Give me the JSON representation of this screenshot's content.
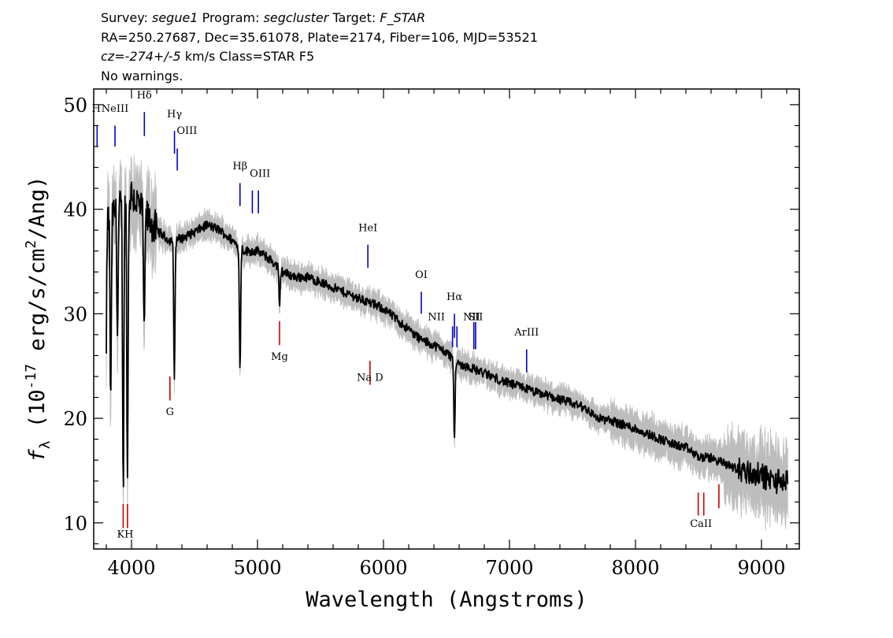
{
  "header": {
    "survey_label": "Survey:",
    "survey": "segue1",
    "program_label": "Program:",
    "program": "segcluster",
    "target_label": "Target:",
    "target": "F_STAR",
    "line2": "RA=250.27687, Dec=35.61078, Plate=2174, Fiber=106, MJD=53521",
    "cz_label": "cz=",
    "cz": "-274+/-5",
    "cz_rest": " km/s Class=STAR F5",
    "warnings": "No warnings."
  },
  "chart_data": {
    "type": "line",
    "xlabel": "Wavelength (Angstroms)",
    "ylabel_prefix": "f",
    "ylabel_sub": "λ",
    "ylabel_open": " (10",
    "ylabel_exp": "-17",
    "ylabel_mid": " erg/s/cm",
    "ylabel_exp2": "2",
    "ylabel_close": "/Ang)",
    "xlim": [
      3700,
      9300
    ],
    "ylim": [
      7.5,
      51.5
    ],
    "xticks": [
      4000,
      5000,
      6000,
      7000,
      8000,
      9000
    ],
    "yticks": [
      10,
      20,
      30,
      40,
      50
    ],
    "colors": {
      "flux": "#000000",
      "error_band": "#bdbdbd",
      "emission": "#0000cc",
      "absorption": "#cc0000"
    },
    "continuum": [
      [
        3800,
        39
      ],
      [
        3900,
        40
      ],
      [
        4000,
        41.5
      ],
      [
        4100,
        39.5
      ],
      [
        4200,
        38
      ],
      [
        4300,
        37
      ],
      [
        4400,
        37.2
      ],
      [
        4500,
        37.8
      ],
      [
        4600,
        38.5
      ],
      [
        4700,
        38
      ],
      [
        4800,
        37
      ],
      [
        4900,
        36
      ],
      [
        5000,
        36
      ],
      [
        5100,
        35.2
      ],
      [
        5200,
        34
      ],
      [
        5300,
        33.5
      ],
      [
        5400,
        33.5
      ],
      [
        5500,
        33
      ],
      [
        5600,
        32.5
      ],
      [
        5700,
        32
      ],
      [
        5800,
        31.5
      ],
      [
        5900,
        31
      ],
      [
        6000,
        30.5
      ],
      [
        6100,
        29.5
      ],
      [
        6200,
        28.5
      ],
      [
        6300,
        27.5
      ],
      [
        6400,
        27
      ],
      [
        6500,
        26.3
      ],
      [
        6600,
        25.2
      ],
      [
        6700,
        24.8
      ],
      [
        6800,
        24.3
      ],
      [
        6900,
        23.8
      ],
      [
        7000,
        23.3
      ],
      [
        7100,
        23
      ],
      [
        7200,
        22.5
      ],
      [
        7300,
        22.2
      ],
      [
        7400,
        21.8
      ],
      [
        7500,
        21.4
      ],
      [
        7600,
        21
      ],
      [
        7700,
        20
      ],
      [
        7800,
        19.8
      ],
      [
        7900,
        19.4
      ],
      [
        8000,
        19
      ],
      [
        8100,
        18.5
      ],
      [
        8200,
        18
      ],
      [
        8300,
        17.5
      ],
      [
        8400,
        17.2
      ],
      [
        8500,
        16.3
      ],
      [
        8600,
        16.2
      ],
      [
        8700,
        15.7
      ],
      [
        8800,
        15.2
      ],
      [
        8900,
        14.8
      ],
      [
        9000,
        14.5
      ],
      [
        9100,
        14
      ],
      [
        9200,
        14
      ]
    ],
    "absorption_features": [
      {
        "x": 3797,
        "min": 23
      },
      {
        "x": 3835,
        "min": 21
      },
      {
        "x": 3889,
        "min": 28
      },
      {
        "x": 3934,
        "min": 12.8
      },
      {
        "x": 3968,
        "min": 13.8
      },
      {
        "x": 4101,
        "min": 27.3
      },
      {
        "x": 4340,
        "min": 23.5
      },
      {
        "x": 4861,
        "min": 24.4
      },
      {
        "x": 6563,
        "min": 17.8
      },
      {
        "x": 5175,
        "min": 30.5
      }
    ],
    "emission_lines": [
      {
        "label": "H",
        "wave": 3727,
        "y0": 46,
        "y1": 48,
        "lx": 3720,
        "ly": 49.3
      },
      {
        "label": "NeIII",
        "wave": 3869,
        "y0": 46,
        "y1": 48,
        "lx": 3869,
        "ly": 49.3
      },
      {
        "label": "Hδ",
        "wave": 4102,
        "y0": 47,
        "y1": 49.3,
        "lx": 4102,
        "ly": 50.6
      },
      {
        "label": "Hγ",
        "wave": 4341,
        "y0": 45.3,
        "y1": 47.5,
        "lx": 4341,
        "ly": 48.8
      },
      {
        "label": "OIII",
        "wave": 4363,
        "y0": 43.7,
        "y1": 45.8,
        "lx": 4440,
        "ly": 47.2
      },
      {
        "label": "Hβ",
        "wave": 4861,
        "y0": 40.3,
        "y1": 42.5,
        "lx": 4861,
        "ly": 43.8
      },
      {
        "label": "OIII",
        "wave": 4959,
        "y0": 39.6,
        "y1": 41.8,
        "lx": 5020,
        "ly": 43.1
      },
      {
        "label": "",
        "wave": 5007,
        "y0": 39.6,
        "y1": 41.8,
        "lx": 5007,
        "ly": 43.1
      },
      {
        "label": "HeI",
        "wave": 5876,
        "y0": 34.4,
        "y1": 36.6,
        "lx": 5876,
        "ly": 37.9
      },
      {
        "label": "OI",
        "wave": 6300,
        "y0": 30,
        "y1": 32.1,
        "lx": 6300,
        "ly": 33.4
      },
      {
        "label": "Hα",
        "wave": 6563,
        "y0": 27.7,
        "y1": 30,
        "lx": 6563,
        "ly": 31.3
      },
      {
        "label": "NII",
        "wave": 6548,
        "y0": 26.8,
        "y1": 28.8,
        "lx": 6420,
        "ly": 29.4
      },
      {
        "label": "NII",
        "wave": 6583,
        "y0": 26.8,
        "y1": 28.8,
        "lx": 6700,
        "ly": 29.4
      },
      {
        "label": "SII",
        "wave": 6717,
        "y0": 26.6,
        "y1": 29.2,
        "lx": 6730,
        "ly": 29.4
      },
      {
        "label": "",
        "wave": 6731,
        "y0": 26.6,
        "y1": 29.2,
        "lx": 6731,
        "ly": 29.4
      },
      {
        "label": "ArIII",
        "wave": 7136,
        "y0": 24.4,
        "y1": 26.6,
        "lx": 7136,
        "ly": 27.9
      }
    ],
    "absorption_lines": [
      {
        "label": "KH",
        "wave": 3934,
        "y0": 9.5,
        "y1": 11.8,
        "lx": 3950,
        "ly": 8.6
      },
      {
        "label": "",
        "wave": 3968,
        "y0": 9.5,
        "y1": 11.8,
        "lx": 3968,
        "ly": 8.6
      },
      {
        "label": "G",
        "wave": 4305,
        "y0": 21.7,
        "y1": 24,
        "lx": 4305,
        "ly": 20.3
      },
      {
        "label": "Mg",
        "wave": 5175,
        "y0": 27,
        "y1": 29.3,
        "lx": 5175,
        "ly": 25.6
      },
      {
        "label": "Na D",
        "wave": 5893,
        "y0": 23.2,
        "y1": 25.5,
        "lx": 5893,
        "ly": 23.6
      },
      {
        "label": "CaII",
        "wave": 8498,
        "y0": 10.7,
        "y1": 12.9,
        "lx": 8520,
        "ly": 9.6
      },
      {
        "label": "",
        "wave": 8542,
        "y0": 10.7,
        "y1": 12.9,
        "lx": 8542,
        "ly": 9.6
      },
      {
        "label": "",
        "wave": 8662,
        "y0": 11.4,
        "y1": 13.7,
        "lx": 8662,
        "ly": 9.6
      }
    ]
  }
}
